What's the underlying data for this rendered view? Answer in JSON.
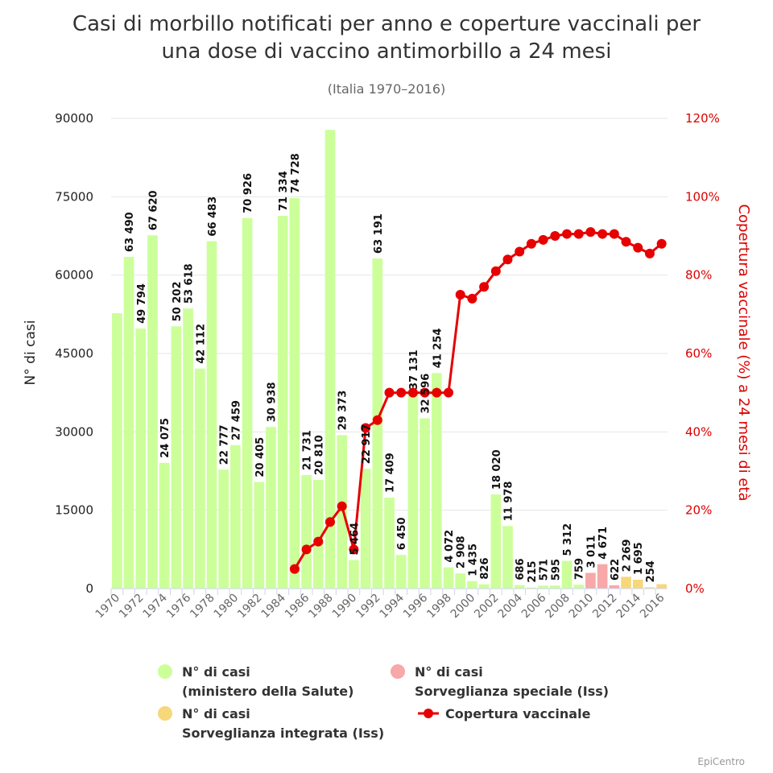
{
  "chart_data": {
    "type": "bar",
    "title_line1": "Casi di morbillo notificati per anno e coperture vaccinali per",
    "title_line2": "una dose di vaccino antimorbillo a 24 mesi",
    "subtitle": "(Italia 1970–2016)",
    "ylabel_left": "N° di casi",
    "ylabel_right": "Copertura vaccinale (%) a 24 mesi di età",
    "ylim_left": [
      0,
      90000
    ],
    "yticks_left": [
      "0",
      "15000",
      "30000",
      "45000",
      "60000",
      "75000",
      "90000"
    ],
    "ylim_right": [
      0,
      120
    ],
    "yticks_right": [
      "0%",
      "20%",
      "40%",
      "60%",
      "80%",
      "100%",
      "120%"
    ],
    "years": [
      1970,
      1971,
      1972,
      1973,
      1974,
      1975,
      1976,
      1977,
      1978,
      1979,
      1980,
      1981,
      1982,
      1983,
      1984,
      1985,
      1986,
      1987,
      1988,
      1989,
      1990,
      1991,
      1992,
      1993,
      1994,
      1995,
      1996,
      1997,
      1998,
      1999,
      2000,
      2001,
      2002,
      2003,
      2004,
      2005,
      2006,
      2007,
      2008,
      2009,
      2010,
      2011,
      2012,
      2013,
      2014,
      2015,
      2016
    ],
    "xtick_labels": [
      "1970",
      "1972",
      "1974",
      "1976",
      "1978",
      "1980",
      "1982",
      "1984",
      "1986",
      "1988",
      "1990",
      "1992",
      "1994",
      "1996",
      "1998",
      "2000",
      "2002",
      "2004",
      "2006",
      "2008",
      "2010",
      "2012",
      "2014",
      "2016"
    ],
    "series": [
      {
        "name": "N° di casi (ministero della Salute)",
        "color": "#ccff99",
        "values": [
          52700,
          63490,
          49794,
          67620,
          24075,
          50202,
          53618,
          42112,
          66483,
          22777,
          27459,
          70926,
          20405,
          30938,
          71334,
          74728,
          21731,
          20810,
          87800,
          29373,
          5464,
          22917,
          63191,
          17409,
          6450,
          37131,
          32596,
          41254,
          4072,
          2908,
          1435,
          826,
          18020,
          11978,
          686,
          215,
          571,
          595,
          5312,
          759,
          null,
          null,
          null,
          null,
          null,
          null,
          null
        ],
        "labels": [
          "",
          "63 490",
          "49 794",
          "67 620",
          "24 075",
          "50 202",
          "53 618",
          "42 112",
          "66 483",
          "22 777",
          "27 459",
          "70 926",
          "20 405",
          "30 938",
          "71 334",
          "74 728",
          "21 731",
          "20 810",
          "",
          "29 373",
          "5 464",
          "22 917",
          "63 191",
          "17 409",
          "6 450",
          "37 131",
          "32 596",
          "41 254",
          "4 072",
          "2 908",
          "1 435",
          "826",
          "18 020",
          "11 978",
          "686",
          "215",
          "571",
          "595",
          "5 312",
          "759",
          "",
          "",
          "",
          "",
          "",
          "",
          ""
        ]
      },
      {
        "name": "N° di casi Sorveglianza speciale (Iss)",
        "color": "#f7a8a8",
        "values": [
          null,
          null,
          null,
          null,
          null,
          null,
          null,
          null,
          null,
          null,
          null,
          null,
          null,
          null,
          null,
          null,
          null,
          null,
          null,
          null,
          null,
          null,
          null,
          null,
          null,
          null,
          null,
          null,
          null,
          null,
          null,
          null,
          null,
          null,
          null,
          null,
          null,
          null,
          null,
          null,
          3011,
          4671,
          622,
          null,
          null,
          null,
          null
        ],
        "labels": [
          "",
          "",
          "",
          "",
          "",
          "",
          "",
          "",
          "",
          "",
          "",
          "",
          "",
          "",
          "",
          "",
          "",
          "",
          "",
          "",
          "",
          "",
          "",
          "",
          "",
          "",
          "",
          "",
          "",
          "",
          "",
          "",
          "",
          "",
          "",
          "",
          "",
          "",
          "",
          "",
          "3 011",
          "4 671",
          "622",
          "",
          "",
          "",
          ""
        ]
      },
      {
        "name": "N° di casi Sorveglianza integrata (Iss)",
        "color": "#f7d77a",
        "values": [
          null,
          null,
          null,
          null,
          null,
          null,
          null,
          null,
          null,
          null,
          null,
          null,
          null,
          null,
          null,
          null,
          null,
          null,
          null,
          null,
          null,
          null,
          null,
          null,
          null,
          null,
          null,
          null,
          null,
          null,
          null,
          null,
          null,
          null,
          null,
          null,
          null,
          null,
          null,
          null,
          null,
          null,
          null,
          2269,
          1695,
          254,
          844
        ],
        "labels": [
          "",
          "",
          "",
          "",
          "",
          "",
          "",
          "",
          "",
          "",
          "",
          "",
          "",
          "",
          "",
          "",
          "",
          "",
          "",
          "",
          "",
          "",
          "",
          "",
          "",
          "",
          "",
          "",
          "",
          "",
          "",
          "",
          "",
          "",
          "",
          "",
          "",
          "",
          "",
          "",
          "",
          "",
          "",
          "2 269",
          "1 695",
          "254",
          ""
        ]
      },
      {
        "name": "Copertura vaccinale",
        "type": "line",
        "color": "#e60000",
        "values": [
          null,
          null,
          null,
          null,
          null,
          null,
          null,
          null,
          null,
          null,
          null,
          null,
          null,
          null,
          null,
          5,
          10,
          12,
          17,
          21,
          10,
          41,
          43,
          50,
          50,
          50,
          50,
          50,
          50,
          75,
          74,
          77,
          81,
          84,
          86,
          88,
          89,
          90,
          90.5,
          90.5,
          91,
          90.5,
          90.5,
          88.5,
          87,
          85.5,
          88
        ]
      }
    ],
    "legend": {
      "ministero_line1": "N° di casi",
      "ministero_line2": "(ministero della Salute)",
      "speciale_line1": "N° di casi",
      "speciale_line2": "Sorveglianza speciale (Iss)",
      "integrata_line1": "N° di casi",
      "integrata_line2": "Sorveglianza integrata (Iss)",
      "copertura": "Copertura vaccinale"
    },
    "grid": true,
    "legend_position": "bottom"
  },
  "credits": "EpiCentro"
}
